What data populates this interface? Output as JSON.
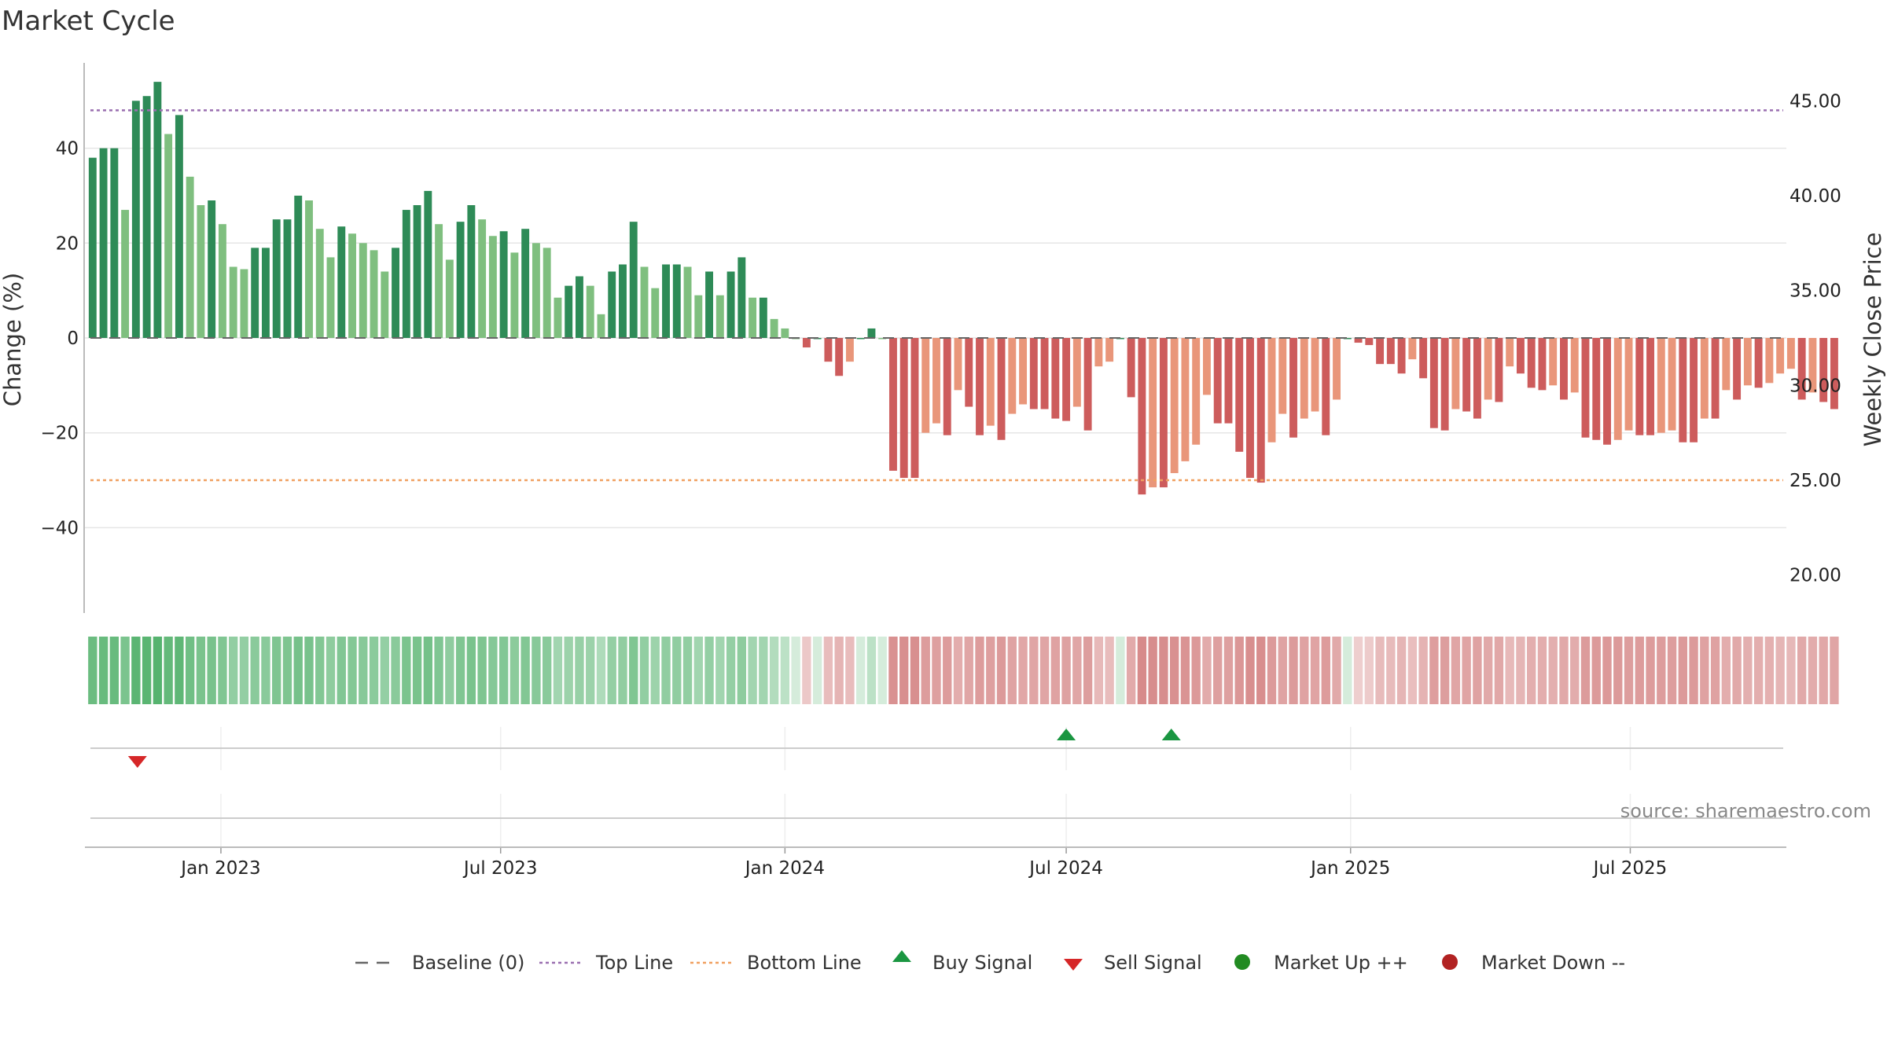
{
  "chart_data": {
    "type": "bar",
    "title": "Market Cycle",
    "ylabel": "Change (%)",
    "y2label": "Weekly Close Price",
    "ylim": [
      -58,
      58
    ],
    "y2lim": [
      18.0,
      47.0
    ],
    "yticks": [
      40,
      20,
      0,
      -20,
      -40
    ],
    "ytick_labels": [
      "40",
      "20",
      "0",
      "−20",
      "−40"
    ],
    "y2ticks": [
      45,
      40,
      35,
      30,
      25,
      20
    ],
    "y2tick_labels": [
      "45.00",
      "40.00",
      "35.00",
      "30.00",
      "25.00",
      "20.00"
    ],
    "x_start": "2022-10-10",
    "week_days": 7,
    "xlim": [
      "2022-10-05",
      "2025-10-10"
    ],
    "xtick_dates": [
      "2023-01-01",
      "2023-07-01",
      "2024-01-01",
      "2024-07-01",
      "2025-01-01",
      "2025-07-01"
    ],
    "xtick_labels": [
      "Jan 2023",
      "Jul 2023",
      "Jan 2024",
      "Jul 2024",
      "Jan 2025",
      "Jul 2025"
    ],
    "values": [
      38,
      40,
      40,
      27,
      50,
      51,
      54,
      43,
      47,
      34,
      28,
      29,
      24,
      15,
      14.5,
      19,
      19,
      25,
      25,
      30,
      29,
      23,
      17,
      23.5,
      22,
      20,
      18.5,
      14,
      19,
      27,
      28,
      31,
      24,
      16.5,
      24.5,
      28,
      25,
      21.5,
      22.5,
      18,
      23,
      20,
      19,
      8.5,
      11,
      13,
      11,
      5,
      14,
      15.5,
      24.5,
      15,
      10.5,
      15.5,
      15.5,
      15,
      9,
      14,
      9,
      14,
      17,
      8.5,
      8.5,
      4,
      2,
      0,
      -2,
      0,
      -5,
      -8,
      -5,
      0,
      2,
      0,
      -28,
      -29.5,
      -29.5,
      -20,
      -18,
      -20.5,
      -11,
      -14.5,
      -20.5,
      -18.5,
      -21.5,
      -16,
      -14,
      -15,
      -15,
      -17,
      -17.5,
      -14.5,
      -19.5,
      -6,
      -5,
      0,
      -12.5,
      -33,
      -31.5,
      -31.5,
      -28.5,
      -26,
      -22.5,
      -12,
      -18,
      -18,
      -24,
      -29.5,
      -30.5,
      -22,
      -16,
      -21,
      -17,
      -15.5,
      -20.5,
      -13,
      0,
      -1,
      -1.5,
      -5.5,
      -5.5,
      -7.5,
      -4.5,
      -8.5,
      -19,
      -19.5,
      -15,
      -15.5,
      -17,
      -13,
      -13.5,
      -6,
      -7.5,
      -10.5,
      -11,
      -10,
      -13,
      -11.5,
      -21,
      -21.5,
      -22.5,
      -21.5,
      -19.5,
      -20.5,
      -20.5,
      -20,
      -19.5,
      -22,
      -22,
      -17,
      -17,
      -11,
      -13,
      -10,
      -10.5,
      -9.5,
      -7.5,
      -6.5,
      -13,
      -11.5,
      -13.5,
      -15
    ],
    "reference_lines": [
      {
        "name": "Baseline (0)",
        "value": 0,
        "color": "#666666",
        "style": "dashed"
      },
      {
        "name": "Top Line",
        "value": 48,
        "color": "#9a6fb0",
        "style": "dotted"
      },
      {
        "name": "Bottom Line",
        "value": -30,
        "color": "#f0a060",
        "style": "dotted"
      }
    ],
    "signals": [
      {
        "type": "Sell Signal",
        "date": "2022-11-08",
        "color": "#d62728"
      },
      {
        "type": "Buy Signal",
        "date": "2024-07-01",
        "color": "#1a9641"
      },
      {
        "type": "Buy Signal",
        "date": "2024-09-07",
        "color": "#1a9641"
      }
    ],
    "source": "source: sharemaestro.com",
    "legend": {
      "position": "bottom",
      "items": [
        {
          "label": "Baseline (0)",
          "marker": "dash",
          "color": "#666666"
        },
        {
          "label": "Top Line",
          "marker": "dotted-line",
          "color": "#9a6fb0"
        },
        {
          "label": "Bottom Line",
          "marker": "dotted-line",
          "color": "#f0a060"
        },
        {
          "label": "Buy Signal",
          "marker": "triangle-up",
          "color": "#1a9641"
        },
        {
          "label": "Sell Signal",
          "marker": "triangle-down",
          "color": "#d62728"
        },
        {
          "label": "Market Up ++",
          "marker": "circle",
          "color": "#228b22"
        },
        {
          "label": "Market Down --",
          "marker": "circle",
          "color": "#b22222"
        }
      ]
    },
    "colors": {
      "up_strong": "#2e8b57",
      "up_weak": "#7fbf7f",
      "down_strong": "#cd5c5c",
      "down_weak": "#e9967a"
    }
  }
}
